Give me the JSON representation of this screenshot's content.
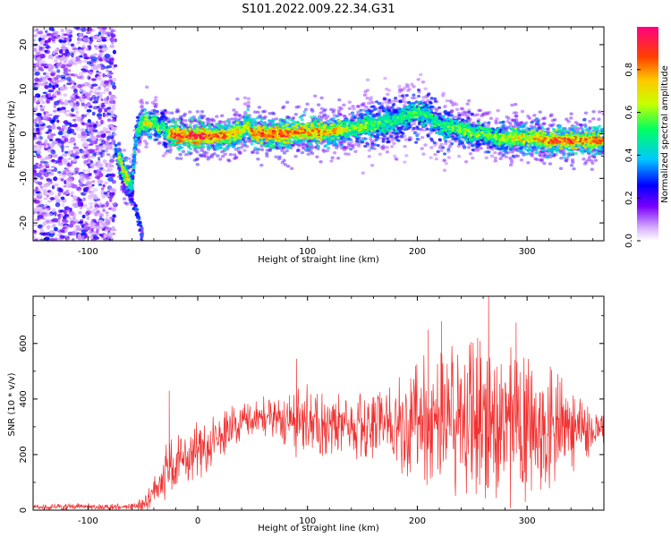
{
  "chart_data": [
    {
      "type": "heatmap",
      "title": "S101.2022.009.22.34.G31",
      "xlabel": "Height of straight line (km)",
      "ylabel": "Frequency (Hz)",
      "xlim": [
        -150,
        370
      ],
      "ylim": [
        -24,
        24
      ],
      "xticks": [
        -100,
        0,
        100,
        200,
        300
      ],
      "yticks": [
        -20,
        -10,
        0,
        10,
        20
      ],
      "colorbar": {
        "label": "Normalized spectral amplitude",
        "range": [
          0,
          1
        ],
        "ticks": [
          "0.0",
          "0.2",
          "0.4",
          "0.6",
          "0.8"
        ],
        "colormap": [
          "#ffffff",
          "#7a00ff",
          "#0000ff",
          "#00c8ff",
          "#00ff60",
          "#c8ff00",
          "#ffc800",
          "#ff4000",
          "#ff0080"
        ]
      },
      "noise_region_x": [
        -150,
        -75
      ],
      "track": {
        "x": [
          -72,
          -68,
          -64,
          -60,
          -56,
          -52,
          -48,
          -44,
          -40,
          -36,
          -32,
          -28,
          -24,
          -20,
          -10,
          0,
          10,
          20,
          30,
          40,
          45,
          50,
          60,
          70,
          80,
          90,
          100,
          110,
          120,
          130,
          140,
          150,
          160,
          170,
          180,
          190,
          200,
          210,
          220,
          230,
          240,
          250,
          260,
          270,
          280,
          290,
          300,
          310,
          320,
          330,
          340,
          350,
          360,
          370
        ],
        "y": [
          -5,
          -8,
          -10,
          -12,
          0,
          2,
          2.5,
          2,
          3,
          1,
          2,
          0,
          0,
          -0.5,
          -0.5,
          -0.5,
          -0.5,
          -0.5,
          0,
          0.5,
          2,
          0,
          0,
          0,
          0,
          0.5,
          0.5,
          0.5,
          0.5,
          1,
          1,
          1.5,
          2,
          2.5,
          3,
          4,
          5,
          4,
          2,
          1.5,
          1,
          0,
          0,
          -0.5,
          -1,
          -1,
          -1,
          -1,
          -1.5,
          -1.5,
          -1.5,
          -1.5,
          -1.5,
          -1.5
        ],
        "amplitude": [
          0.6,
          0.7,
          0.7,
          0.4,
          0.5,
          0.6,
          0.7,
          0.7,
          0.6,
          0.6,
          0.5,
          0.5,
          0.9,
          0.95,
          0.9,
          0.9,
          0.85,
          0.85,
          0.8,
          0.7,
          0.6,
          0.85,
          0.85,
          0.9,
          0.85,
          0.8,
          0.85,
          0.8,
          0.75,
          0.7,
          0.6,
          0.6,
          0.55,
          0.55,
          0.5,
          0.5,
          0.55,
          0.5,
          0.5,
          0.55,
          0.6,
          0.6,
          0.6,
          0.6,
          0.65,
          0.7,
          0.7,
          0.75,
          0.8,
          0.85,
          0.85,
          0.8,
          0.8,
          0.75
        ]
      },
      "descending_branch": {
        "x": [
          -75,
          -70,
          -65,
          -60,
          -55,
          -50
        ],
        "y": [
          -3,
          -9,
          -12,
          -14,
          -18,
          -23
        ]
      }
    },
    {
      "type": "line",
      "xlabel": "Height of straight line (km)",
      "ylabel": "SNR (10 * v/v)",
      "xlim": [
        -150,
        370
      ],
      "ylim": [
        0,
        770
      ],
      "xticks": [
        -100,
        0,
        100,
        200,
        300
      ],
      "yticks": [
        0,
        200,
        400,
        600
      ],
      "color": "#f03232",
      "envelope": {
        "x": [
          -150,
          -60,
          -50,
          -40,
          -30,
          -20,
          -10,
          0,
          10,
          20,
          30,
          40,
          60,
          80,
          100,
          130,
          160,
          180,
          200,
          220,
          240,
          260,
          280,
          300,
          320,
          340,
          370
        ],
        "mean": [
          12,
          12,
          20,
          60,
          130,
          170,
          200,
          215,
          230,
          260,
          300,
          320,
          330,
          320,
          310,
          310,
          310,
          315,
          320,
          330,
          320,
          320,
          300,
          300,
          300,
          300,
          280
        ],
        "spread": [
          8,
          8,
          20,
          40,
          70,
          80,
          70,
          70,
          70,
          60,
          50,
          45,
          50,
          70,
          80,
          80,
          90,
          110,
          150,
          190,
          200,
          200,
          200,
          180,
          150,
          100,
          40
        ]
      },
      "peaks": [
        {
          "x": -26,
          "y": 430
        },
        {
          "x": 90,
          "y": 545
        },
        {
          "x": 210,
          "y": 650
        },
        {
          "x": 222,
          "y": 680
        },
        {
          "x": 255,
          "y": 620
        },
        {
          "x": 265,
          "y": 770
        },
        {
          "x": 290,
          "y": 675
        }
      ]
    }
  ]
}
